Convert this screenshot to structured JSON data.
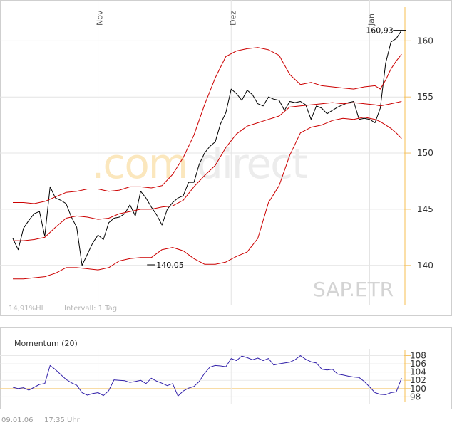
{
  "chart_data": [
    {
      "type": "line",
      "symbol": "SAP.ETR",
      "watermark": {
        "left": ".com",
        "right": "direct"
      },
      "months": [
        "Nov",
        "Dez",
        "Jan"
      ],
      "y_ticks": [
        "140",
        "145",
        "150",
        "155",
        "160"
      ],
      "ylim": [
        136.5,
        163
      ],
      "volatility_label": "14,91%HL",
      "interval_label": "Intervall: 1 Tag",
      "annotations": [
        {
          "text": "140,05",
          "x": 26,
          "y": 140.05
        },
        {
          "text": "160,93",
          "x": 73,
          "y": 160.93
        }
      ],
      "x_count": 75,
      "series": [
        {
          "role": "price",
          "color": "#000000",
          "x": [
            0,
            1,
            2,
            3,
            4,
            5,
            6,
            7,
            8,
            9,
            10,
            11,
            12,
            13,
            14,
            15,
            16,
            17,
            18,
            19,
            20,
            21,
            22,
            23,
            24,
            25,
            26,
            27,
            28,
            29,
            30,
            31,
            32,
            33,
            34,
            35,
            36,
            37,
            38,
            39,
            40,
            41,
            42,
            43,
            44,
            45,
            46,
            47,
            48,
            49,
            50,
            51,
            52,
            53,
            54,
            55,
            56,
            57,
            58,
            59,
            60,
            61,
            62,
            63,
            64,
            65,
            66,
            67,
            68,
            69,
            70,
            71,
            72,
            73
          ],
          "y": [
            142.4,
            141.4,
            143.3,
            144.0,
            144.6,
            144.8,
            142.6,
            147.0,
            146.0,
            145.8,
            145.5,
            144.3,
            143.4,
            140.0,
            141.0,
            142.0,
            142.7,
            142.3,
            143.8,
            144.2,
            144.3,
            144.6,
            145.4,
            144.4,
            146.6,
            146.0,
            145.2,
            144.5,
            143.6,
            145.0,
            145.6,
            146.0,
            146.2,
            147.4,
            147.4,
            149.0,
            150.0,
            150.6,
            151.0,
            152.6,
            153.6,
            155.7,
            155.3,
            154.7,
            155.6,
            155.2,
            154.4,
            154.2,
            155.0,
            154.8,
            154.7,
            153.8,
            154.6,
            154.5,
            154.6,
            154.3,
            153.0,
            154.2,
            154.0,
            153.5,
            153.8,
            154.1,
            154.3,
            154.5,
            154.6,
            153.0,
            153.1,
            153.0,
            152.7,
            154.0,
            158.0,
            159.9,
            160.2,
            160.93
          ]
        },
        {
          "role": "upper-band",
          "color": "#cc0000",
          "x": [
            0,
            2,
            4,
            6,
            8,
            10,
            12,
            14,
            16,
            18,
            20,
            22,
            24,
            26,
            28,
            30,
            32,
            34,
            36,
            38,
            40,
            42,
            44,
            46,
            48,
            50,
            52,
            54,
            56,
            58,
            60,
            62,
            64,
            66,
            68,
            69,
            70,
            71,
            72,
            73
          ],
          "y": [
            145.6,
            145.6,
            145.5,
            145.7,
            146.1,
            146.5,
            146.6,
            146.8,
            146.8,
            146.6,
            146.7,
            147.0,
            147.0,
            146.9,
            147.1,
            148.1,
            149.6,
            151.6,
            154.3,
            156.7,
            158.6,
            159.1,
            159.3,
            159.4,
            159.2,
            158.7,
            157.0,
            156.1,
            156.3,
            156.0,
            155.9,
            155.8,
            155.7,
            155.9,
            156.0,
            155.7,
            156.5,
            157.5,
            158.2,
            158.8
          ]
        },
        {
          "role": "middle-band",
          "color": "#cc0000",
          "x": [
            0,
            2,
            4,
            6,
            8,
            10,
            12,
            14,
            16,
            18,
            20,
            22,
            24,
            26,
            28,
            30,
            32,
            34,
            36,
            38,
            40,
            42,
            44,
            46,
            48,
            50,
            52,
            54,
            56,
            58,
            60,
            62,
            64,
            66,
            68,
            69,
            70,
            71,
            72,
            73
          ],
          "y": [
            142.2,
            142.2,
            142.3,
            142.5,
            143.4,
            144.2,
            144.4,
            144.3,
            144.1,
            144.2,
            144.6,
            144.8,
            145.0,
            145.0,
            145.2,
            145.3,
            145.8,
            147.0,
            148.0,
            148.9,
            150.5,
            151.7,
            152.4,
            152.7,
            153.0,
            153.3,
            154.1,
            154.2,
            154.3,
            154.4,
            154.5,
            154.4,
            154.5,
            154.4,
            154.3,
            154.2,
            154.3,
            154.4,
            154.5,
            154.6
          ]
        },
        {
          "role": "lower-band",
          "color": "#cc0000",
          "x": [
            0,
            2,
            4,
            6,
            8,
            10,
            12,
            14,
            16,
            18,
            20,
            22,
            24,
            26,
            28,
            30,
            32,
            34,
            36,
            38,
            40,
            42,
            44,
            46,
            48,
            50,
            52,
            54,
            56,
            58,
            60,
            62,
            64,
            66,
            68,
            69,
            70,
            71,
            72,
            73
          ],
          "y": [
            138.8,
            138.8,
            138.9,
            139.0,
            139.3,
            139.8,
            139.8,
            139.7,
            139.6,
            139.8,
            140.4,
            140.6,
            140.7,
            140.7,
            141.4,
            141.6,
            141.3,
            140.6,
            140.1,
            140.1,
            140.3,
            140.8,
            141.2,
            142.4,
            145.6,
            147.1,
            149.8,
            151.8,
            152.3,
            152.5,
            152.9,
            153.1,
            153.0,
            153.2,
            153.0,
            152.8,
            152.5,
            152.2,
            151.8,
            151.3
          ]
        }
      ]
    },
    {
      "type": "line",
      "title": "Momentum (20)",
      "y_ticks": [
        "98",
        "100",
        "102",
        "104",
        "106",
        "108"
      ],
      "ylim": [
        96.5,
        109.3
      ],
      "x_count": 75,
      "series": [
        {
          "role": "momentum",
          "color": "#3322aa",
          "x": [
            0,
            1,
            2,
            3,
            4,
            5,
            6,
            7,
            8,
            9,
            10,
            11,
            12,
            13,
            14,
            15,
            16,
            17,
            18,
            19,
            20,
            21,
            22,
            23,
            24,
            25,
            26,
            27,
            28,
            29,
            30,
            31,
            32,
            33,
            34,
            35,
            36,
            37,
            38,
            39,
            40,
            41,
            42,
            43,
            44,
            45,
            46,
            47,
            48,
            49,
            50,
            51,
            52,
            53,
            54,
            55,
            56,
            57,
            58,
            59,
            60,
            61,
            62,
            63,
            64,
            65,
            66,
            67,
            68,
            69,
            70,
            71,
            72,
            73
          ],
          "y": [
            100.3,
            100.0,
            100.2,
            99.6,
            100.3,
            101.0,
            101.2,
            105.6,
            104.6,
            103.4,
            102.2,
            101.4,
            100.8,
            99.0,
            98.4,
            98.8,
            99.0,
            98.3,
            99.5,
            102.1,
            102.0,
            101.9,
            101.5,
            101.7,
            102.0,
            101.2,
            102.5,
            101.8,
            101.3,
            100.7,
            101.2,
            98.2,
            99.4,
            100.1,
            100.5,
            101.7,
            103.7,
            105.2,
            105.6,
            105.5,
            105.3,
            107.3,
            106.8,
            107.9,
            107.5,
            107.0,
            107.4,
            106.8,
            107.3,
            105.7,
            106.0,
            106.2,
            106.4,
            107.0,
            108.0,
            107.1,
            106.5,
            106.2,
            104.7,
            104.5,
            104.7,
            103.5,
            103.3,
            103.0,
            102.8,
            102.7,
            101.7,
            100.4,
            99.0,
            98.6,
            98.5,
            99.0,
            99.2,
            102.5
          ]
        }
      ]
    }
  ],
  "footer": {
    "date": "09.01.06",
    "time": "17:35 Uhr"
  }
}
